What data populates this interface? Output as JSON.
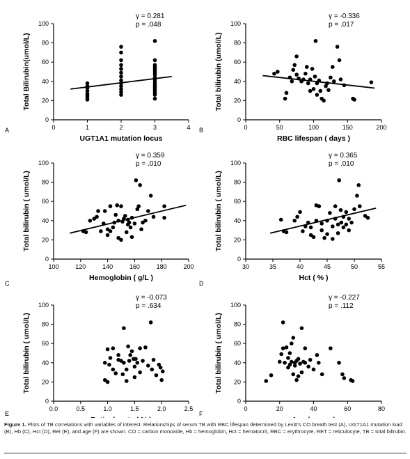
{
  "caption": {
    "label": "Figure 1.",
    "text": "Plots of TB correlations with variables of interest. Relationships of serum TB with RBC lifespan determined by Levitt's CO breath test (A), UGT1A1 mutation load (B), Hb (C), Hct (D), Ret (E), and age (F) are shown. CO = carbon monoxide, Hb = hemoglobin, Hct = hematocrit, RBC = erythrocyte, RET = reticulocyte, TB = total bilirubin."
  },
  "chart_data": [
    {
      "id": "A",
      "panel_label": "A",
      "type": "scatter",
      "xlabel": "UGT1A1 mutation locus",
      "ylabel": "Total Bilirubin(umol/L)",
      "xlim": [
        0,
        4
      ],
      "ylim": [
        0,
        100
      ],
      "xticks": [
        "0",
        "1",
        "2",
        "3",
        "4"
      ],
      "yticks": [
        "0",
        "20",
        "40",
        "60",
        "80",
        "100"
      ],
      "stat_r": "γ = 0.281",
      "stat_p": "p = .048",
      "trend": [
        [
          0.5,
          32
        ],
        [
          3.5,
          45
        ]
      ],
      "points": [
        [
          1,
          38
        ],
        [
          1,
          35
        ],
        [
          1,
          33
        ],
        [
          1,
          30
        ],
        [
          1,
          27
        ],
        [
          1,
          25
        ],
        [
          1,
          23
        ],
        [
          1,
          21
        ],
        [
          2,
          76
        ],
        [
          2,
          70
        ],
        [
          2,
          62
        ],
        [
          2,
          57
        ],
        [
          2,
          53
        ],
        [
          2,
          49
        ],
        [
          2,
          45
        ],
        [
          2,
          41
        ],
        [
          2,
          38
        ],
        [
          2,
          35
        ],
        [
          2,
          32
        ],
        [
          2,
          29
        ],
        [
          2,
          26
        ],
        [
          3,
          82
        ],
        [
          3,
          62
        ],
        [
          3,
          57
        ],
        [
          3,
          55
        ],
        [
          3,
          53
        ],
        [
          3,
          51
        ],
        [
          3,
          49
        ],
        [
          3,
          47
        ],
        [
          3,
          44
        ],
        [
          3,
          42
        ],
        [
          3,
          40
        ],
        [
          3,
          38
        ],
        [
          3,
          36
        ],
        [
          3,
          34
        ],
        [
          3,
          32
        ],
        [
          3,
          30
        ],
        [
          3,
          28
        ],
        [
          3,
          26
        ],
        [
          3,
          22
        ]
      ]
    },
    {
      "id": "B",
      "panel_label": "B",
      "type": "scatter",
      "xlabel": "RBC lifespan ( days )",
      "ylabel": "Total bilirubin (umol/L)",
      "xlim": [
        0,
        200
      ],
      "ylim": [
        0,
        100
      ],
      "xticks": [
        "0",
        "50",
        "100",
        "150",
        "200"
      ],
      "yticks": [
        "0",
        "20",
        "40",
        "60",
        "80",
        "100"
      ],
      "stat_r": "γ = -0.336",
      "stat_p": "p = .017",
      "trend": [
        [
          25,
          46
        ],
        [
          190,
          33
        ]
      ],
      "points": [
        [
          47,
          50
        ],
        [
          42,
          48
        ],
        [
          60,
          28
        ],
        [
          58,
          22
        ],
        [
          65,
          44
        ],
        [
          68,
          40
        ],
        [
          70,
          52
        ],
        [
          72,
          57
        ],
        [
          75,
          66
        ],
        [
          75,
          47
        ],
        [
          78,
          43
        ],
        [
          82,
          40
        ],
        [
          85,
          42
        ],
        [
          88,
          48
        ],
        [
          90,
          55
        ],
        [
          92,
          38
        ],
        [
          95,
          42
        ],
        [
          95,
          30
        ],
        [
          98,
          53
        ],
        [
          100,
          32
        ],
        [
          102,
          45
        ],
        [
          103,
          82
        ],
        [
          105,
          26
        ],
        [
          105,
          38
        ],
        [
          108,
          41
        ],
        [
          110,
          30
        ],
        [
          112,
          22
        ],
        [
          115,
          20
        ],
        [
          118,
          35
        ],
        [
          120,
          38
        ],
        [
          122,
          31
        ],
        [
          125,
          44
        ],
        [
          128,
          55
        ],
        [
          130,
          40
        ],
        [
          135,
          76
        ],
        [
          138,
          62
        ],
        [
          140,
          42
        ],
        [
          145,
          36
        ],
        [
          158,
          22
        ],
        [
          160,
          21
        ],
        [
          185,
          39
        ]
      ]
    },
    {
      "id": "C",
      "panel_label": "C",
      "type": "scatter",
      "xlabel": "Hemoglobin ( g/L )",
      "ylabel": "Total bilirubin ( umol/L)",
      "xlim": [
        100,
        200
      ],
      "ylim": [
        0,
        100
      ],
      "xticks": [
        "100",
        "120",
        "140",
        "160",
        "180",
        "200"
      ],
      "yticks": [
        "0",
        "20",
        "40",
        "60",
        "80",
        "100"
      ],
      "stat_r": "γ = 0.359",
      "stat_p": "p = .010",
      "trend": [
        [
          112,
          27
        ],
        [
          198,
          56
        ]
      ],
      "points": [
        [
          122,
          29
        ],
        [
          124,
          28
        ],
        [
          127,
          40
        ],
        [
          130,
          42
        ],
        [
          132,
          44
        ],
        [
          133,
          50
        ],
        [
          135,
          29
        ],
        [
          137,
          37
        ],
        [
          138,
          50
        ],
        [
          140,
          25
        ],
        [
          140,
          31
        ],
        [
          142,
          29
        ],
        [
          142,
          55
        ],
        [
          144,
          33
        ],
        [
          145,
          38
        ],
        [
          146,
          46
        ],
        [
          147,
          56
        ],
        [
          148,
          40
        ],
        [
          148,
          22
        ],
        [
          150,
          55
        ],
        [
          150,
          20
        ],
        [
          151,
          39
        ],
        [
          152,
          42
        ],
        [
          153,
          45
        ],
        [
          154,
          28
        ],
        [
          155,
          36
        ],
        [
          155,
          41
        ],
        [
          156,
          38
        ],
        [
          157,
          33
        ],
        [
          158,
          23
        ],
        [
          158,
          43
        ],
        [
          160,
          37
        ],
        [
          161,
          82
        ],
        [
          162,
          52
        ],
        [
          163,
          55
        ],
        [
          164,
          77
        ],
        [
          165,
          31
        ],
        [
          166,
          38
        ],
        [
          168,
          40
        ],
        [
          170,
          50
        ],
        [
          172,
          66
        ],
        [
          174,
          44
        ],
        [
          182,
          55
        ],
        [
          182,
          43
        ]
      ]
    },
    {
      "id": "D",
      "panel_label": "D",
      "type": "scatter",
      "xlabel": "Hct ( % )",
      "ylabel": "Total bilirubin ( umol/L)",
      "xlim": [
        30,
        55
      ],
      "ylim": [
        0,
        100
      ],
      "xticks": [
        "30",
        "35",
        "40",
        "45",
        "50",
        "55"
      ],
      "yticks": [
        "0",
        "20",
        "40",
        "60",
        "80",
        "100"
      ],
      "stat_r": "γ = 0.365",
      "stat_p": "p = .010",
      "trend": [
        [
          34.5,
          27
        ],
        [
          54,
          53
        ]
      ],
      "points": [
        [
          36.5,
          41
        ],
        [
          37,
          29
        ],
        [
          37.5,
          28
        ],
        [
          39,
          40
        ],
        [
          39.5,
          44
        ],
        [
          40,
          49
        ],
        [
          40.5,
          29
        ],
        [
          41,
          34
        ],
        [
          41.5,
          38
        ],
        [
          42,
          25
        ],
        [
          42,
          33
        ],
        [
          42.5,
          23
        ],
        [
          43,
          40
        ],
        [
          43,
          56
        ],
        [
          43.5,
          55
        ],
        [
          44,
          30
        ],
        [
          44,
          37
        ],
        [
          44.5,
          22
        ],
        [
          45,
          26
        ],
        [
          45,
          40
        ],
        [
          45.5,
          48
        ],
        [
          46,
          21
        ],
        [
          46,
          34
        ],
        [
          46.5,
          42
        ],
        [
          46.5,
          55
        ],
        [
          47,
          27
        ],
        [
          47,
          36
        ],
        [
          47.2,
          82
        ],
        [
          47.5,
          51
        ],
        [
          47.6,
          38
        ],
        [
          48,
          33
        ],
        [
          48,
          44
        ],
        [
          48.5,
          36
        ],
        [
          48.5,
          49
        ],
        [
          49,
          30
        ],
        [
          49,
          42
        ],
        [
          49.5,
          38
        ],
        [
          50,
          52
        ],
        [
          50.5,
          66
        ],
        [
          50.8,
          77
        ],
        [
          51,
          55
        ],
        [
          52,
          45
        ],
        [
          52.5,
          43
        ]
      ]
    },
    {
      "id": "E",
      "panel_label": "E",
      "type": "scatter",
      "xlabel": "Reticulocyte ( % )",
      "ylabel": "Total bilirubin ( umol/L)",
      "xlim": [
        0,
        2.5
      ],
      "ylim": [
        0,
        100
      ],
      "xticks": [
        "0.0",
        "0.5",
        "1.0",
        "1.5",
        "2.0",
        "2.5"
      ],
      "yticks": [
        "0",
        "20",
        "40",
        "60",
        "80",
        "100"
      ],
      "stat_r": "γ = -0.073",
      "stat_p": "p = .634",
      "trend": [],
      "points": [
        [
          0.95,
          40
        ],
        [
          0.95,
          22
        ],
        [
          1.0,
          54
        ],
        [
          1.0,
          20
        ],
        [
          1.03,
          38
        ],
        [
          1.05,
          45
        ],
        [
          1.1,
          33
        ],
        [
          1.1,
          55
        ],
        [
          1.15,
          29
        ],
        [
          1.2,
          43
        ],
        [
          1.2,
          48
        ],
        [
          1.25,
          42
        ],
        [
          1.28,
          28
        ],
        [
          1.3,
          40
        ],
        [
          1.3,
          76
        ],
        [
          1.35,
          21
        ],
        [
          1.35,
          33
        ],
        [
          1.38,
          57
        ],
        [
          1.4,
          42
        ],
        [
          1.42,
          48
        ],
        [
          1.45,
          52
        ],
        [
          1.48,
          44
        ],
        [
          1.5,
          25
        ],
        [
          1.5,
          36
        ],
        [
          1.52,
          44
        ],
        [
          1.55,
          40
        ],
        [
          1.6,
          30
        ],
        [
          1.6,
          55
        ],
        [
          1.65,
          42
        ],
        [
          1.7,
          56
        ],
        [
          1.75,
          37
        ],
        [
          1.8,
          82
        ],
        [
          1.82,
          33
        ],
        [
          1.85,
          43
        ],
        [
          1.9,
          27
        ],
        [
          1.95,
          38
        ],
        [
          1.98,
          35
        ],
        [
          2.0,
          22
        ],
        [
          2.02,
          31
        ]
      ]
    },
    {
      "id": "F",
      "panel_label": "F",
      "type": "scatter",
      "xlabel": "Age ( years )",
      "ylabel": "Total bilirubin ( umol/L)",
      "xlim": [
        0,
        80
      ],
      "ylim": [
        0,
        100
      ],
      "xticks": [
        "0",
        "20",
        "40",
        "60",
        "80"
      ],
      "yticks": [
        "0",
        "20",
        "40",
        "60",
        "80",
        "100"
      ],
      "stat_r": "γ = -0.227",
      "stat_p": "p = .112",
      "trend": [],
      "points": [
        [
          12,
          21
        ],
        [
          15,
          27
        ],
        [
          20,
          41
        ],
        [
          21,
          49
        ],
        [
          22,
          82
        ],
        [
          22,
          55
        ],
        [
          23,
          40
        ],
        [
          24,
          56
        ],
        [
          25,
          45
        ],
        [
          25,
          35
        ],
        [
          26,
          50
        ],
        [
          26,
          38
        ],
        [
          27,
          41
        ],
        [
          27,
          60
        ],
        [
          28,
          28
        ],
        [
          28,
          66
        ],
        [
          29,
          40
        ],
        [
          29,
          37
        ],
        [
          30,
          42
        ],
        [
          30,
          22
        ],
        [
          31,
          26
        ],
        [
          31,
          44
        ],
        [
          32,
          39
        ],
        [
          33,
          30
        ],
        [
          33,
          76
        ],
        [
          34,
          41
        ],
        [
          35,
          55
        ],
        [
          35,
          40
        ],
        [
          37,
          36
        ],
        [
          38,
          43
        ],
        [
          40,
          33
        ],
        [
          42,
          48
        ],
        [
          43,
          40
        ],
        [
          45,
          28
        ],
        [
          50,
          55
        ],
        [
          55,
          40
        ],
        [
          57,
          28
        ],
        [
          58,
          24
        ],
        [
          62,
          22
        ],
        [
          63,
          21
        ]
      ]
    }
  ]
}
